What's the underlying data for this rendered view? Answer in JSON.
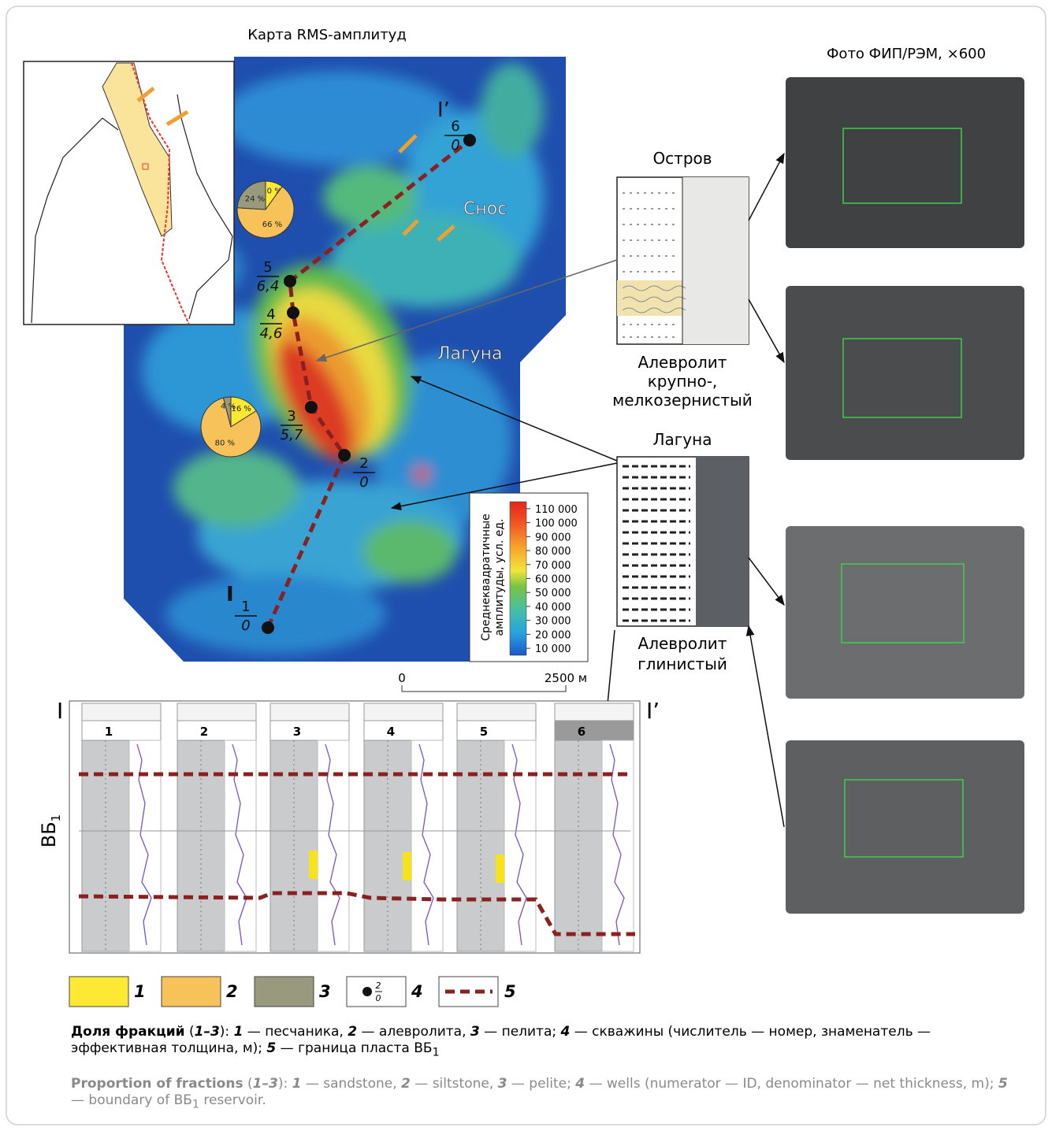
{
  "map": {
    "title": "Карта RMS-амплитуд",
    "section_start": "I",
    "section_end": "I’",
    "label_source": "Снос",
    "label_lagoon": "Лагуна",
    "wells": [
      {
        "id": "1",
        "thickness": "0"
      },
      {
        "id": "2",
        "thickness": "0"
      },
      {
        "id": "3",
        "thickness": "5,7"
      },
      {
        "id": "4",
        "thickness": "4,6"
      },
      {
        "id": "5",
        "thickness": "6,4"
      },
      {
        "id": "6",
        "thickness": "0"
      }
    ],
    "pies": [
      {
        "values": [
          10,
          66,
          24
        ],
        "value_labels": [
          "10 %",
          "66 %",
          "24 %"
        ]
      },
      {
        "values": [
          16,
          80,
          4
        ],
        "value_labels": [
          "16 %",
          "80 %",
          "4 %"
        ]
      }
    ],
    "colorbar": {
      "title_lines": [
        "Среднеквадратичные",
        "амплитуды, усл. ед."
      ],
      "lim": [
        5000,
        115000
      ],
      "ticks": [
        {
          "value": 10000,
          "label": "10 000"
        },
        {
          "value": 20000,
          "label": "20 000"
        },
        {
          "value": 30000,
          "label": "30 000"
        },
        {
          "value": 40000,
          "label": "40 000"
        },
        {
          "value": 50000,
          "label": "50 000"
        },
        {
          "value": 60000,
          "label": "60 000"
        },
        {
          "value": 70000,
          "label": "70 000"
        },
        {
          "value": 80000,
          "label": "80 000"
        },
        {
          "value": 90000,
          "label": "90 000"
        },
        {
          "value": 100000,
          "label": "100 000"
        },
        {
          "value": 110000,
          "label": "110 000"
        }
      ]
    },
    "scale": {
      "start": "0",
      "end": "2500 м"
    }
  },
  "columns": {
    "island": {
      "title": "Остров",
      "caption_lines": [
        "Алевролит",
        "крупно-,",
        "мелкозернистый"
      ]
    },
    "lagoon": {
      "title": "Лагуна",
      "caption_lines": [
        "Алевролит",
        "глинистый"
      ]
    }
  },
  "photos": {
    "title": "Фото ФИП/РЭМ, ×600"
  },
  "section": {
    "start": "I",
    "end": "I’",
    "layer": "ВБ",
    "layer_sub": "1",
    "wells": [
      "1",
      "2",
      "3",
      "4",
      "5",
      "6"
    ]
  },
  "legend": {
    "items": [
      "1",
      "2",
      "3",
      "4",
      "5"
    ],
    "well_sample": {
      "num": "2",
      "den": "0"
    }
  },
  "caption": {
    "ru": [
      "Доля фракций",
      " (",
      "1–3",
      "): ",
      "1",
      " — песчаника, ",
      "2",
      " — алевролита, ",
      "3",
      " — пелита; ",
      "4",
      " — скважины (числитель — номер, знаменатель — эффективная толщина, м); ",
      "5",
      " — граница пласта ВБ",
      "1"
    ],
    "en": [
      "Proportion of fractions",
      " (",
      "1–3",
      "): ",
      "1",
      " — sandstone, ",
      "2",
      " — siltstone, ",
      "3",
      " — pelite; ",
      "4",
      " — wells (numerator — ID, denominator — net thickness, m); ",
      "5",
      " — boundary of ВБ",
      "1",
      " reservoir."
    ]
  }
}
